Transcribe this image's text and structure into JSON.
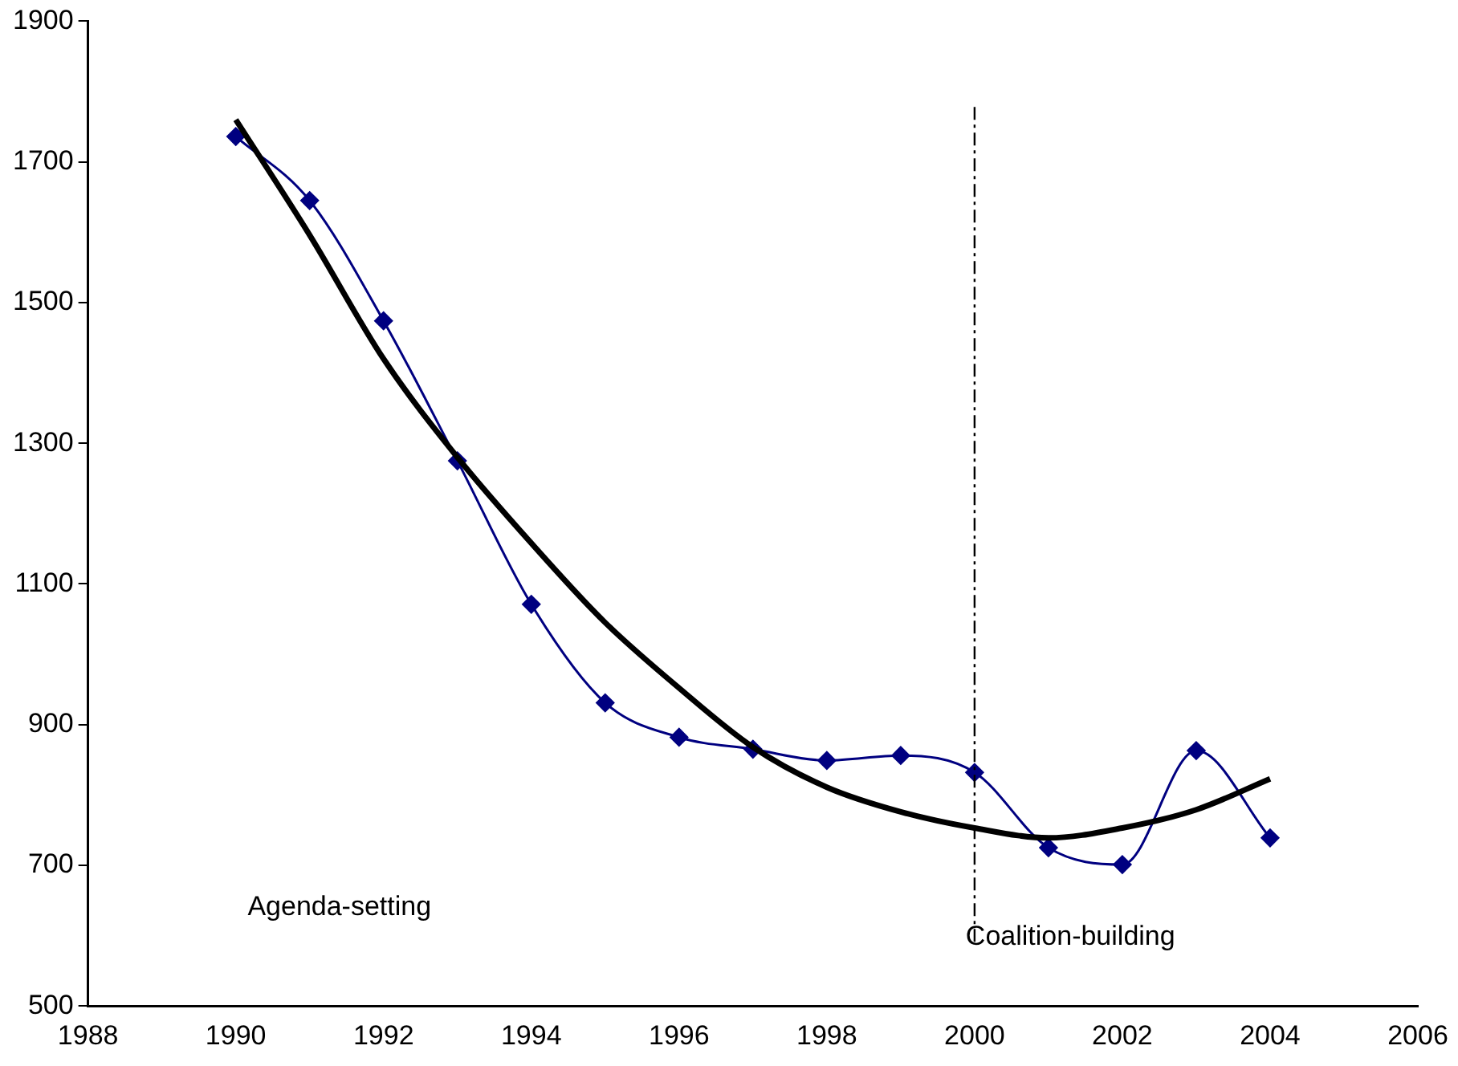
{
  "chart_data": {
    "type": "line",
    "xlim": [
      1988,
      2006
    ],
    "xticks": [
      1988,
      1990,
      1992,
      1994,
      1996,
      1998,
      2000,
      2002,
      2004,
      2006
    ],
    "ylim": [
      500,
      1900
    ],
    "yticks": [
      500,
      700,
      900,
      1100,
      1300,
      1500,
      1700,
      1900
    ],
    "grid": false,
    "legend": false,
    "series": [
      {
        "color": "#000080",
        "marker": "diamond",
        "x": [
          1990,
          1991,
          1992,
          1993,
          1994,
          1995,
          1996,
          1997,
          1998,
          1999,
          2000,
          2001,
          2002,
          2003,
          2004
        ],
        "values": [
          1736,
          1645,
          1474,
          1275,
          1071,
          931,
          882,
          865,
          849,
          856,
          832,
          725,
          701,
          863,
          739
        ]
      },
      {
        "color": "#000000",
        "marker": "none",
        "x": [
          1990,
          1991,
          1992,
          1993,
          1994,
          1995,
          1996,
          1997,
          1998,
          1999,
          2000,
          2001,
          2002,
          2003,
          2004
        ],
        "values": [
          1760,
          1596,
          1420,
          1280,
          1158,
          1045,
          952,
          868,
          811,
          776,
          753,
          739,
          753,
          779,
          823
        ]
      }
    ],
    "ref_lines": [
      {
        "axis": "x",
        "value": 2000,
        "color": "#000000",
        "line_style": "dashdot"
      }
    ],
    "annotations": [
      "Agenda-setting",
      "Coalition-building"
    ]
  }
}
